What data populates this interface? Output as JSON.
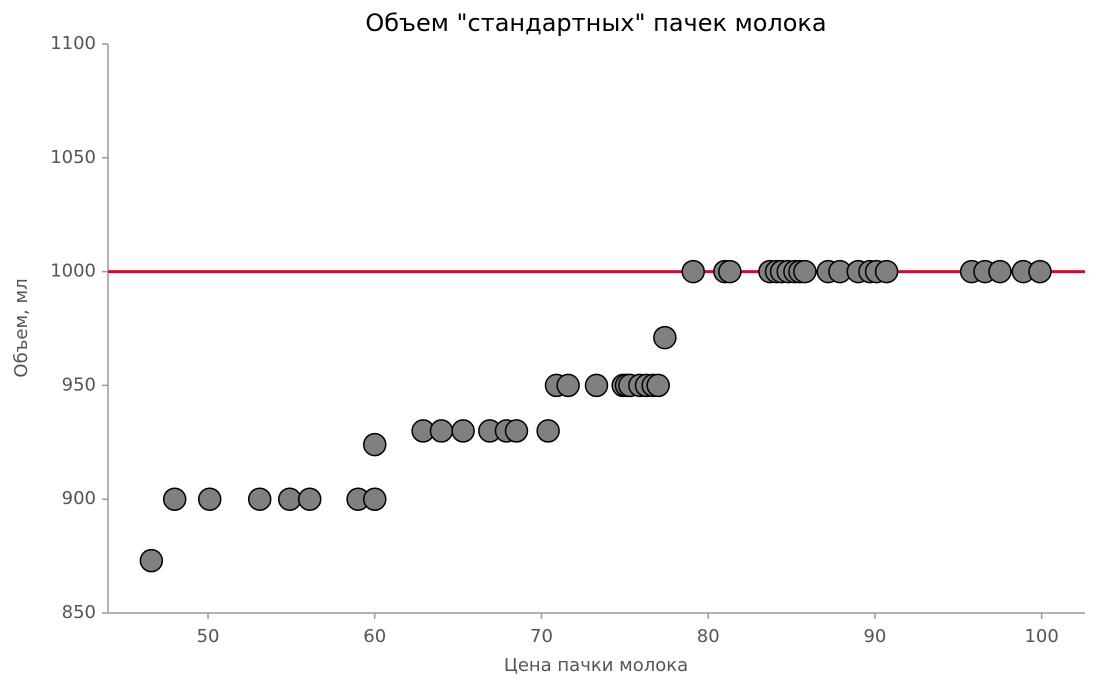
{
  "chart_data": {
    "type": "scatter",
    "title": "Объем \"стандартных\" пачек молока",
    "x_label": "Цена пачки молока",
    "y_label": "Объем, мл",
    "series": [
      {
        "color": "#808080",
        "x": [
          46.6,
          48.0,
          50.1,
          53.1,
          54.9,
          56.1,
          59.0,
          60.0,
          60.0,
          62.9,
          64.0,
          65.3,
          66.9,
          67.9,
          68.5,
          70.4,
          70.9,
          71.6,
          73.3,
          74.9,
          75.1,
          75.3,
          75.9,
          76.3,
          76.7,
          77.0,
          77.4,
          79.1,
          81.0,
          81.3,
          83.7,
          84.1,
          84.4,
          84.8,
          85.2,
          85.5,
          85.8,
          87.2,
          87.9,
          89.0,
          89.7,
          90.1,
          90.7,
          95.8,
          96.6,
          97.5,
          98.9,
          99.9
        ],
        "values": [
          873,
          900,
          900,
          900,
          900,
          900,
          900,
          900,
          924,
          930,
          930,
          930,
          930,
          930,
          930,
          930,
          950,
          950,
          950,
          950,
          950,
          950,
          950,
          950,
          950,
          950,
          971,
          1000,
          1000,
          1000,
          1000,
          1000,
          1000,
          1000,
          1000,
          1000,
          1000,
          1000,
          1000,
          1000,
          1000,
          1000,
          1000,
          1000,
          1000,
          1000,
          1000,
          1000
        ]
      }
    ],
    "hline": 1000,
    "hline_color": "#c8102e",
    "xlim": [
      44,
      102.6
    ],
    "ylim": [
      850,
      1100
    ],
    "xticks": [
      50,
      60,
      70,
      80,
      90,
      100
    ],
    "yticks": [
      850,
      900,
      950,
      1000,
      1050,
      1100
    ],
    "grid": false
  }
}
